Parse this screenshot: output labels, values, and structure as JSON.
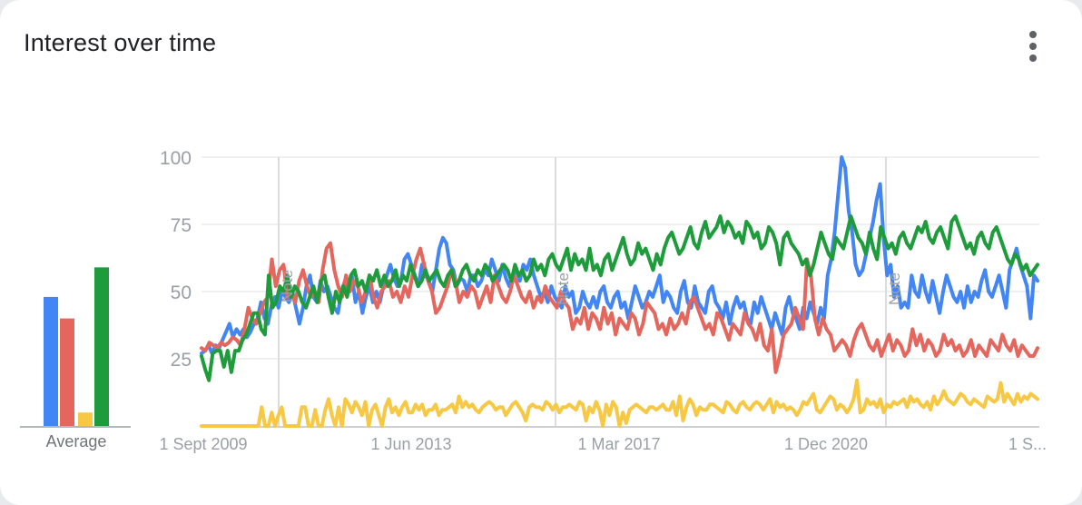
{
  "header": {
    "title": "Interest over time",
    "menu_icon": "more-vert-icon"
  },
  "chart_data": {
    "type": "line",
    "title": "Interest over time",
    "ylim": [
      0,
      100
    ],
    "y_ticks": [
      25,
      50,
      75,
      100
    ],
    "x_tick_labels": [
      "1 Sept 2009",
      "1 Jun 2013",
      "1 Mar 2017",
      "1 Dec 2020",
      "1 S..."
    ],
    "grid": true,
    "note_labels": [
      "Note",
      "Note",
      "Note"
    ],
    "average_label": "Average",
    "average_bars": [
      {
        "color": "#4285f4",
        "value": 48
      },
      {
        "color": "#e4665c",
        "value": 40
      },
      {
        "color": "#f6c844",
        "value": 5
      },
      {
        "color": "#1e9c3c",
        "value": 59
      }
    ],
    "series": [
      {
        "color": "#4285f4",
        "values": [
          27,
          28,
          30,
          27,
          30,
          29,
          32,
          35,
          38,
          33,
          36,
          34,
          36,
          33,
          35,
          38,
          40,
          46,
          40,
          38,
          45,
          48,
          44,
          50,
          48,
          46,
          50,
          44,
          38,
          44,
          52,
          56,
          48,
          46,
          54,
          50,
          52,
          48,
          44,
          42,
          50,
          54,
          50,
          56,
          46,
          50,
          42,
          48,
          52,
          46,
          50,
          46,
          52,
          56,
          60,
          55,
          52,
          54,
          62,
          64,
          60,
          56,
          52,
          60,
          56,
          54,
          50,
          58,
          66,
          70,
          68,
          60,
          58,
          52,
          55,
          54,
          50,
          56,
          56,
          52,
          54,
          58,
          56,
          62,
          58,
          54,
          60,
          55,
          52,
          56,
          58,
          54,
          60,
          58,
          62,
          56,
          52,
          48,
          50,
          46,
          52,
          48,
          46,
          44,
          52,
          48,
          50,
          42,
          44,
          50,
          46,
          44,
          48,
          44,
          50,
          52,
          46,
          44,
          48,
          50,
          44,
          46,
          40,
          46,
          52,
          48,
          44,
          46,
          50,
          48,
          52,
          56,
          46,
          50,
          48,
          44,
          42,
          50,
          54,
          46,
          44,
          52,
          46,
          44,
          42,
          50,
          52,
          46,
          44,
          40,
          46,
          38,
          44,
          48,
          44,
          46,
          40,
          38,
          46,
          42,
          48,
          44,
          40,
          36,
          42,
          38,
          34,
          44,
          48,
          42,
          40,
          36,
          44,
          40,
          46,
          42,
          38,
          44,
          40,
          56,
          62,
          72,
          86,
          100,
          96,
          80,
          72,
          60,
          56,
          58,
          64,
          70,
          76,
          84,
          90,
          70,
          56,
          60,
          48,
          52,
          44,
          46,
          44,
          56,
          50,
          48,
          56,
          50,
          46,
          54,
          48,
          42,
          50,
          56,
          52,
          48,
          46,
          50,
          44,
          52,
          46,
          50,
          48,
          54,
          58,
          50,
          48,
          52,
          56,
          50,
          44,
          58,
          62,
          66,
          60,
          56,
          52,
          40,
          56,
          54
        ]
      },
      {
        "color": "#e4665c",
        "values": [
          29,
          28,
          31,
          30,
          29,
          31,
          30,
          31,
          33,
          32,
          30,
          36,
          44,
          40,
          38,
          42,
          46,
          48,
          62,
          52,
          58,
          60,
          48,
          50,
          46,
          54,
          58,
          52,
          48,
          50,
          46,
          58,
          66,
          68,
          58,
          52,
          48,
          56,
          50,
          54,
          52,
          46,
          50,
          56,
          48,
          44,
          50,
          52,
          54,
          48,
          50,
          46,
          52,
          48,
          56,
          62,
          66,
          60,
          54,
          50,
          42,
          44,
          48,
          52,
          58,
          54,
          46,
          50,
          48,
          52,
          50,
          44,
          48,
          52,
          46,
          56,
          52,
          48,
          46,
          50,
          56,
          52,
          48,
          46,
          50,
          44,
          48,
          46,
          52,
          48,
          46,
          44,
          50,
          46,
          44,
          36,
          40,
          38,
          44,
          36,
          42,
          40,
          36,
          44,
          38,
          42,
          34,
          40,
          38,
          36,
          42,
          40,
          34,
          38,
          46,
          44,
          42,
          36,
          38,
          34,
          40,
          36,
          38,
          42,
          38,
          46,
          48,
          44,
          40,
          36,
          38,
          34,
          42,
          40,
          36,
          32,
          38,
          36,
          34,
          42,
          38,
          36,
          32,
          38,
          30,
          28,
          36,
          20,
          26,
          34,
          36,
          38,
          44,
          40,
          36,
          62,
          56,
          40,
          34,
          40,
          36,
          34,
          28,
          30,
          32,
          30,
          26,
          32,
          36,
          38,
          34,
          30,
          28,
          32,
          26,
          30,
          34,
          28,
          32,
          30,
          26,
          28,
          36,
          30,
          34,
          28,
          32,
          30,
          26,
          28,
          34,
          30,
          32,
          28,
          30,
          26,
          28,
          32,
          26,
          30,
          28,
          26,
          32,
          30,
          28,
          34,
          30,
          28,
          32,
          26,
          30,
          28,
          26,
          26,
          29
        ]
      },
      {
        "color": "#f6c844",
        "values": [
          0,
          0,
          0,
          0,
          0,
          0,
          0,
          0,
          0,
          0,
          0,
          0,
          0,
          0,
          0,
          0,
          0,
          0,
          7,
          0,
          0,
          5,
          0,
          4,
          7,
          0,
          0,
          0,
          0,
          0,
          7,
          7,
          0,
          0,
          6,
          0,
          0,
          6,
          10,
          4,
          0,
          7,
          0,
          10,
          8,
          5,
          9,
          7,
          4,
          9,
          0,
          6,
          8,
          4,
          0,
          7,
          10,
          5,
          7,
          4,
          7,
          9,
          5,
          5,
          8,
          6,
          8,
          4,
          6,
          6,
          8,
          4,
          6,
          6,
          7,
          8,
          5,
          11,
          7,
          9,
          7,
          8,
          6,
          5,
          7,
          8,
          9,
          8,
          6,
          7,
          7,
          4,
          6,
          8,
          9,
          7,
          5,
          2,
          7,
          8,
          7,
          7,
          6,
          9,
          8,
          6,
          8,
          5,
          7,
          7,
          8,
          7,
          6,
          9,
          8,
          2,
          7,
          5,
          9,
          6,
          0,
          8,
          4,
          9,
          7,
          0,
          5,
          1,
          6,
          7,
          8,
          7,
          6,
          5,
          7,
          7,
          6,
          7,
          8,
          6,
          6,
          9,
          4,
          11,
          2,
          7,
          10,
          8,
          4,
          7,
          6,
          6,
          8,
          8,
          7,
          6,
          5,
          9,
          8,
          6,
          5,
          8,
          9,
          7,
          6,
          8,
          9,
          8,
          6,
          8,
          10,
          5,
          9,
          7,
          8,
          6,
          7,
          6,
          4,
          6,
          9,
          8,
          10,
          12,
          6,
          5,
          7,
          9,
          11,
          10,
          6,
          8,
          7,
          5,
          7,
          10,
          17,
          5,
          6,
          10,
          8,
          9,
          7,
          10,
          5,
          8,
          7,
          9,
          8,
          9,
          10,
          7,
          11,
          9,
          10,
          8,
          7,
          9,
          6,
          11,
          8,
          10,
          13,
          10,
          9,
          8,
          10,
          12,
          11,
          9,
          8,
          10,
          9,
          8,
          7,
          11,
          10,
          9,
          10,
          16,
          9,
          12,
          10,
          8,
          12,
          9,
          11,
          10,
          12,
          11,
          10
        ]
      },
      {
        "color": "#1e9c3c",
        "values": [
          26,
          21,
          17,
          27,
          28,
          28,
          22,
          28,
          20,
          28,
          28,
          32,
          34,
          38,
          42,
          42,
          36,
          34,
          56,
          44,
          46,
          52,
          50,
          56,
          48,
          52,
          50,
          46,
          44,
          48,
          52,
          46,
          54,
          56,
          48,
          42,
          50,
          46,
          52,
          48,
          56,
          58,
          52,
          54,
          50,
          56,
          54,
          58,
          52,
          56,
          52,
          54,
          58,
          52,
          56,
          54,
          60,
          56,
          52,
          54,
          58,
          54,
          56,
          58,
          54,
          52,
          56,
          58,
          52,
          54,
          58,
          60,
          56,
          54,
          58,
          56,
          60,
          58,
          54,
          56,
          58,
          60,
          58,
          54,
          60,
          56,
          58,
          54,
          56,
          62,
          58,
          60,
          56,
          62,
          64,
          60,
          58,
          62,
          66,
          58,
          64,
          60,
          62,
          58,
          66,
          58,
          60,
          56,
          62,
          64,
          58,
          62,
          66,
          70,
          64,
          60,
          62,
          68,
          64,
          66,
          62,
          58,
          64,
          60,
          66,
          70,
          72,
          68,
          64,
          66,
          70,
          74,
          68,
          66,
          72,
          76,
          70,
          72,
          74,
          78,
          72,
          76,
          74,
          70,
          72,
          68,
          76,
          74,
          70,
          72,
          66,
          68,
          74,
          72,
          68,
          60,
          70,
          72,
          68,
          66,
          64,
          60,
          62,
          56,
          60,
          66,
          72,
          68,
          64,
          62,
          70,
          68,
          66,
          72,
          78,
          74,
          70,
          68,
          64,
          72,
          66,
          62,
          74,
          70,
          66,
          68,
          64,
          70,
          72,
          68,
          66,
          70,
          74,
          72,
          76,
          70,
          68,
          72,
          74,
          70,
          66,
          76,
          78,
          74,
          70,
          66,
          68,
          64,
          70,
          72,
          68,
          66,
          72,
          74,
          70,
          66,
          62,
          60,
          64,
          62,
          58,
          60,
          56,
          58,
          60
        ]
      }
    ]
  }
}
